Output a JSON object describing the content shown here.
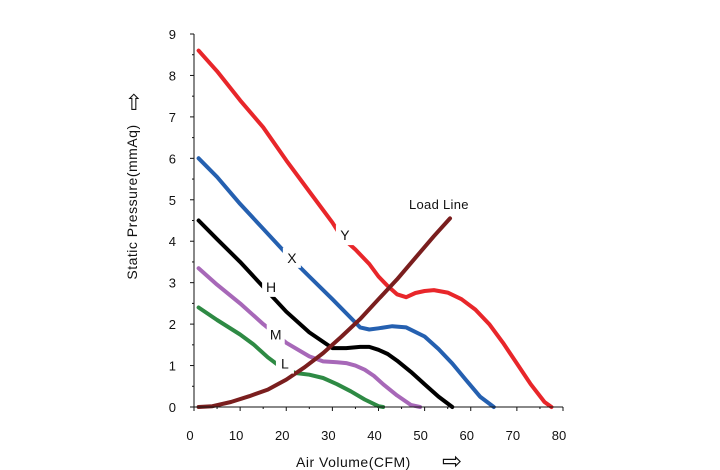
{
  "chart_data": {
    "type": "line",
    "xlabel": "Air Volume(CFM)",
    "ylabel": "Static Pressure(mmAq)",
    "xlim": [
      0,
      80
    ],
    "ylim": [
      0,
      9
    ],
    "xticks": [
      0,
      10,
      20,
      30,
      40,
      50,
      60,
      70,
      80
    ],
    "yticks": [
      0,
      1,
      2,
      3,
      4,
      5,
      6,
      7,
      8,
      9
    ],
    "grid": false,
    "colors": {
      "Y": "#e8262a",
      "X": "#2560b0",
      "H": "#000000",
      "M": "#a768b8",
      "L": "#2e8a44",
      "Load Line": "#7a1e1e"
    },
    "series": [
      {
        "name": "Y",
        "x": [
          1,
          5,
          10,
          15,
          20,
          25,
          30,
          32,
          35,
          38,
          40,
          42,
          44,
          46,
          48,
          50,
          52,
          55,
          58,
          61,
          64,
          67,
          70,
          73,
          76,
          77.5
        ],
        "y": [
          8.6,
          8.1,
          7.4,
          6.75,
          5.95,
          5.2,
          4.45,
          4.1,
          3.8,
          3.45,
          3.15,
          2.92,
          2.72,
          2.65,
          2.75,
          2.8,
          2.82,
          2.76,
          2.6,
          2.35,
          2.0,
          1.55,
          1.05,
          0.55,
          0.12,
          0
        ]
      },
      {
        "name": "X",
        "x": [
          1,
          5,
          10,
          15,
          20,
          25,
          30,
          34,
          36,
          38,
          40,
          43,
          46,
          50,
          53,
          56,
          59,
          62,
          65
        ],
        "y": [
          6.0,
          5.55,
          4.9,
          4.3,
          3.7,
          3.15,
          2.6,
          2.15,
          1.92,
          1.87,
          1.9,
          1.95,
          1.92,
          1.7,
          1.4,
          1.05,
          0.65,
          0.25,
          0
        ]
      },
      {
        "name": "H",
        "x": [
          1,
          5,
          10,
          15,
          20,
          25,
          30,
          33,
          36,
          38,
          40,
          42,
          44,
          47,
          50,
          53,
          56
        ],
        "y": [
          4.5,
          4.05,
          3.5,
          2.9,
          2.3,
          1.8,
          1.42,
          1.42,
          1.45,
          1.45,
          1.38,
          1.28,
          1.12,
          0.85,
          0.55,
          0.25,
          0
        ]
      },
      {
        "name": "M",
        "x": [
          1,
          5,
          10,
          15,
          20,
          25,
          28,
          31,
          33,
          35,
          37,
          39,
          41,
          44,
          47,
          49
        ],
        "y": [
          3.35,
          2.95,
          2.5,
          2.0,
          1.55,
          1.22,
          1.1,
          1.08,
          1.06,
          1.0,
          0.9,
          0.75,
          0.55,
          0.28,
          0.05,
          0
        ]
      },
      {
        "name": "L",
        "x": [
          1,
          5,
          10,
          13,
          16,
          19,
          22,
          25,
          28,
          31,
          34,
          37,
          40,
          41
        ],
        "y": [
          2.4,
          2.1,
          1.75,
          1.5,
          1.2,
          0.95,
          0.82,
          0.78,
          0.7,
          0.55,
          0.38,
          0.18,
          0.02,
          0
        ]
      }
    ],
    "load_line": {
      "name": "Load Line",
      "x": [
        1,
        4,
        8,
        12,
        16,
        20,
        24,
        28,
        32,
        36,
        40,
        44,
        48,
        52,
        55.5
      ],
      "y": [
        0,
        0.02,
        0.12,
        0.26,
        0.42,
        0.66,
        0.96,
        1.3,
        1.7,
        2.12,
        2.6,
        3.08,
        3.6,
        4.12,
        4.55
      ]
    },
    "curve_labels": [
      "Y",
      "X",
      "H",
      "M",
      "L"
    ],
    "load_line_label": "Load Line",
    "arrow_glyphs": {
      "x": "⇨",
      "y": "⇧"
    }
  }
}
